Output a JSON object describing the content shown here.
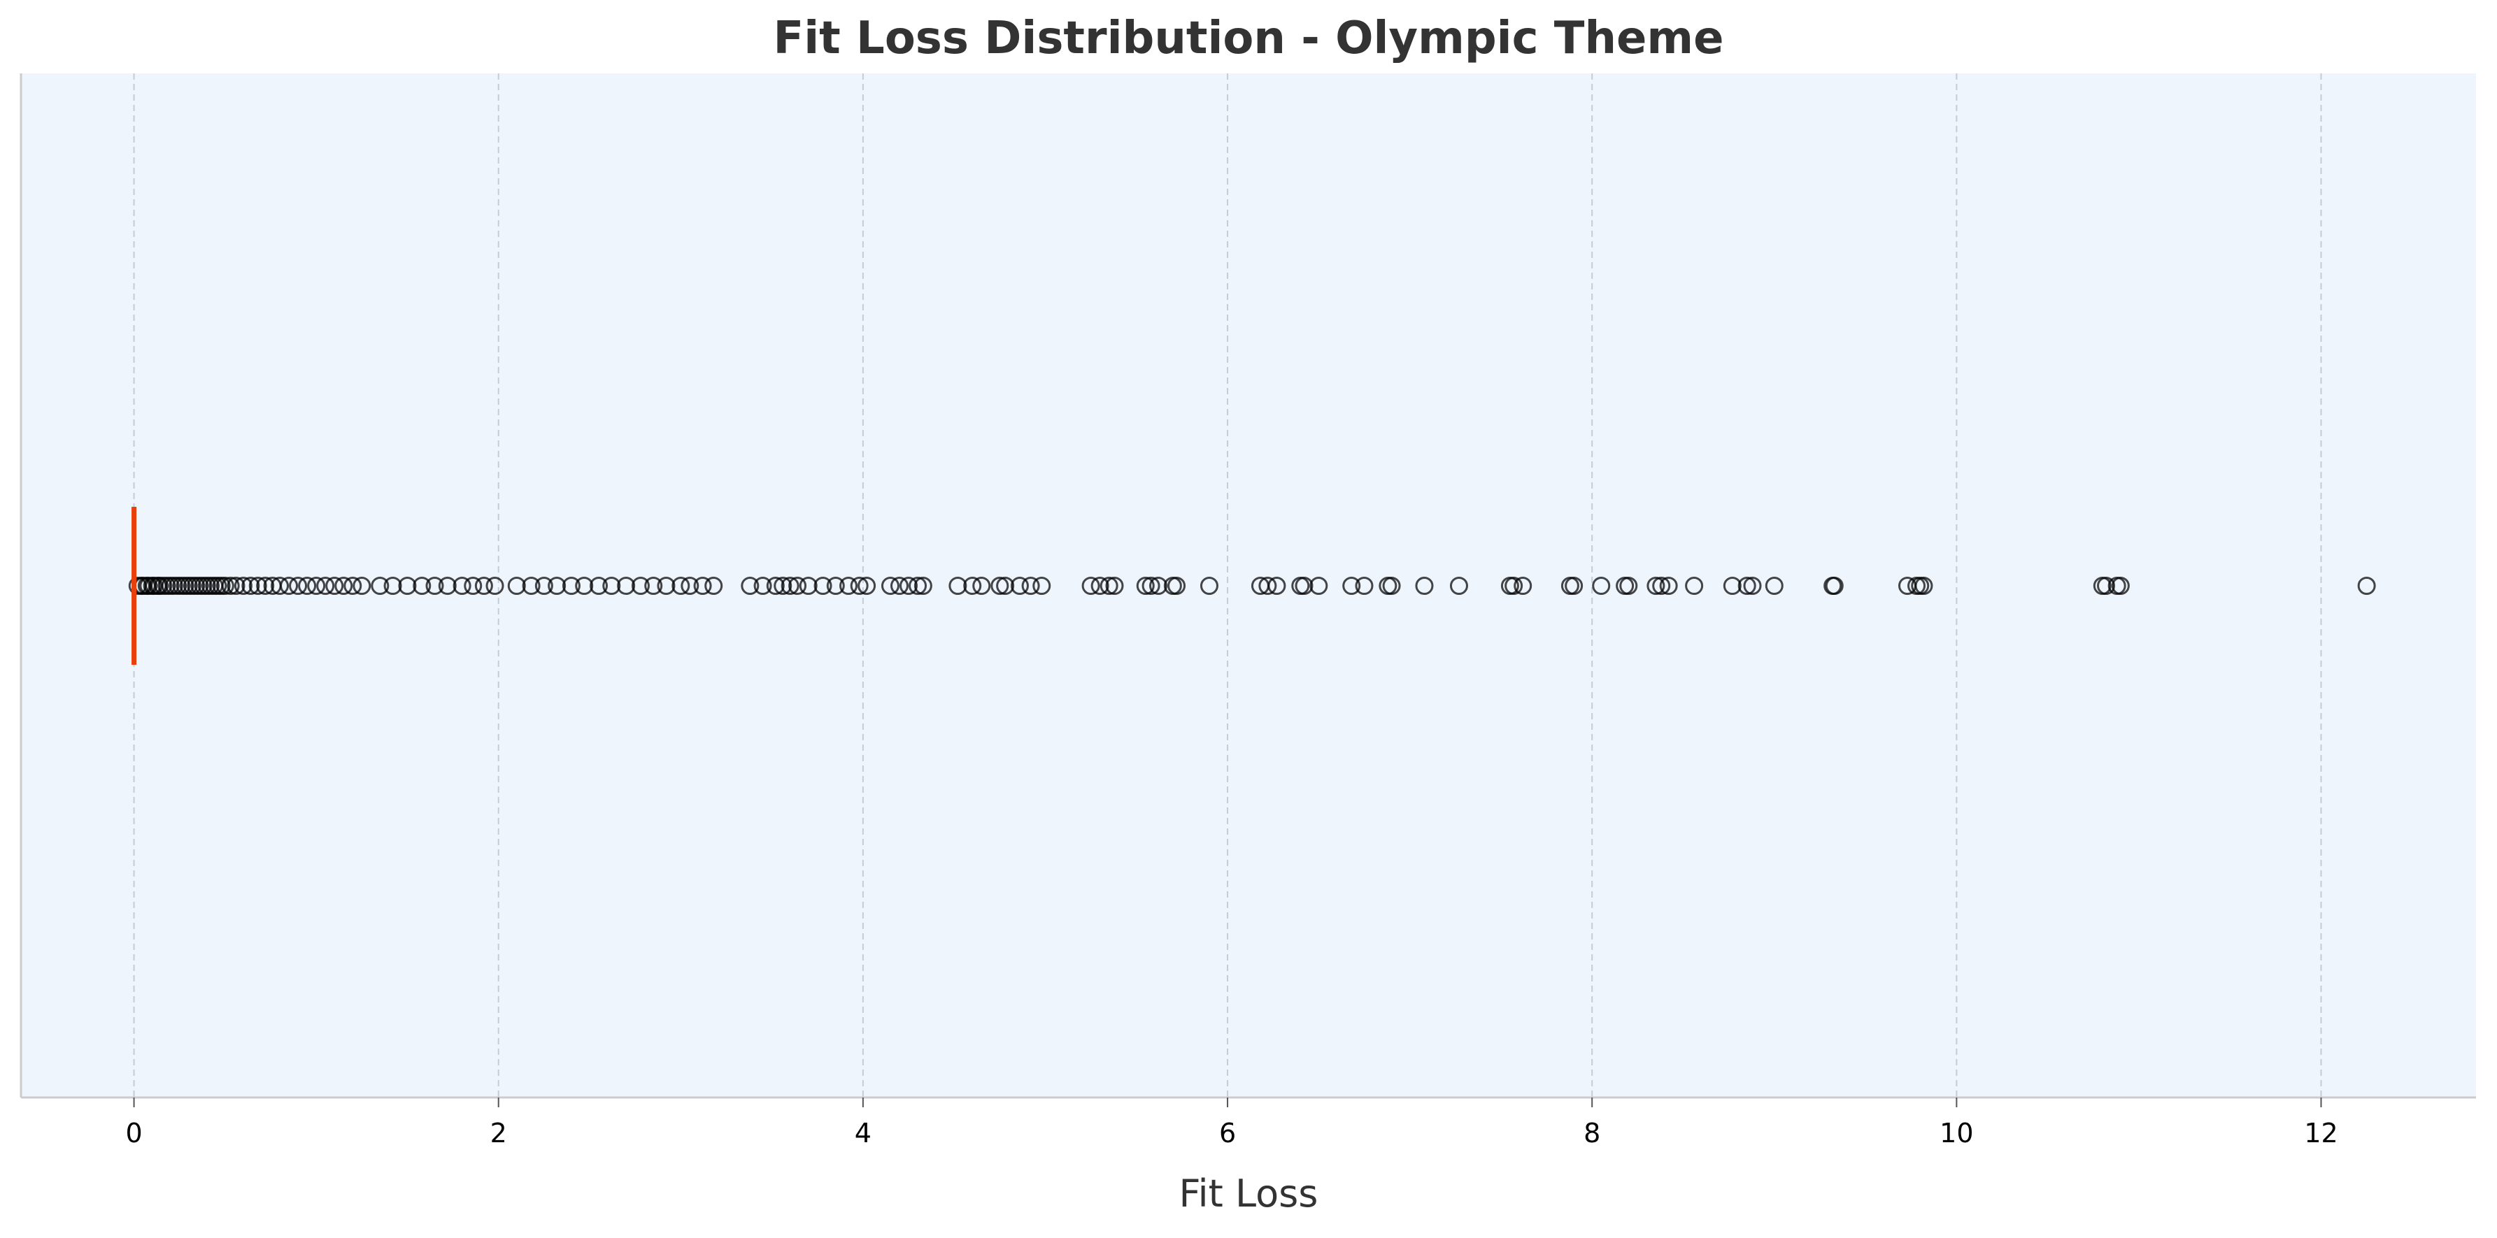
{
  "chart_data": {
    "type": "box",
    "orientation": "horizontal",
    "title": "Fit Loss Distribution - Olympic Theme",
    "xlabel": "Fit Loss",
    "ylabel": "",
    "xlim": [
      -0.62,
      12.85
    ],
    "x_ticks": [
      0,
      2,
      4,
      6,
      8,
      10,
      12
    ],
    "x_tick_labels": [
      "0",
      "2",
      "4",
      "6",
      "8",
      "10",
      "12"
    ],
    "grid": "x-axis dashed",
    "box": {
      "q1": 0.0,
      "median": 0.0,
      "q3": 0.0,
      "whisker_low": 0.0,
      "whisker_high": 0.0
    },
    "outliers": [
      0.02,
      0.04,
      0.05,
      0.07,
      0.08,
      0.1,
      0.11,
      0.13,
      0.14,
      0.16,
      0.18,
      0.2,
      0.22,
      0.24,
      0.26,
      0.28,
      0.3,
      0.32,
      0.34,
      0.36,
      0.38,
      0.4,
      0.42,
      0.44,
      0.46,
      0.48,
      0.5,
      0.53,
      0.56,
      0.6,
      0.64,
      0.68,
      0.72,
      0.76,
      0.8,
      0.85,
      0.9,
      0.95,
      1.0,
      1.05,
      1.1,
      1.15,
      1.2,
      1.25,
      1.35,
      1.42,
      1.5,
      1.58,
      1.65,
      1.72,
      1.8,
      1.86,
      1.92,
      1.98,
      2.1,
      2.18,
      2.25,
      2.32,
      2.4,
      2.47,
      2.55,
      2.62,
      2.7,
      2.78,
      2.85,
      2.92,
      3.0,
      3.05,
      3.12,
      3.18,
      3.38,
      3.45,
      3.52,
      3.56,
      3.6,
      3.64,
      3.7,
      3.78,
      3.85,
      3.92,
      3.98,
      4.02,
      4.15,
      4.2,
      4.25,
      4.3,
      4.33,
      4.52,
      4.6,
      4.65,
      4.75,
      4.78,
      4.86,
      4.92,
      4.98,
      5.25,
      5.3,
      5.35,
      5.38,
      5.55,
      5.58,
      5.62,
      5.7,
      5.72,
      5.9,
      6.18,
      6.22,
      6.27,
      6.4,
      6.42,
      6.5,
      6.68,
      6.75,
      6.88,
      6.9,
      7.08,
      7.27,
      7.55,
      7.57,
      7.62,
      7.88,
      7.9,
      8.05,
      8.18,
      8.2,
      8.35,
      8.38,
      8.42,
      8.56,
      8.77,
      8.85,
      8.88,
      9.0,
      9.32,
      9.33,
      9.73,
      9.78,
      9.8,
      9.82,
      10.8,
      10.82,
      10.88,
      10.9,
      12.25
    ],
    "colors": {
      "plot_background": "#eef5fd",
      "median_line": "#e8400c",
      "outlier_edge": "#000000",
      "grid": "#c5ccd6",
      "spine": "#cccccc",
      "title": "#333333",
      "axis_label": "#333333",
      "tick_label": "#000000"
    }
  }
}
